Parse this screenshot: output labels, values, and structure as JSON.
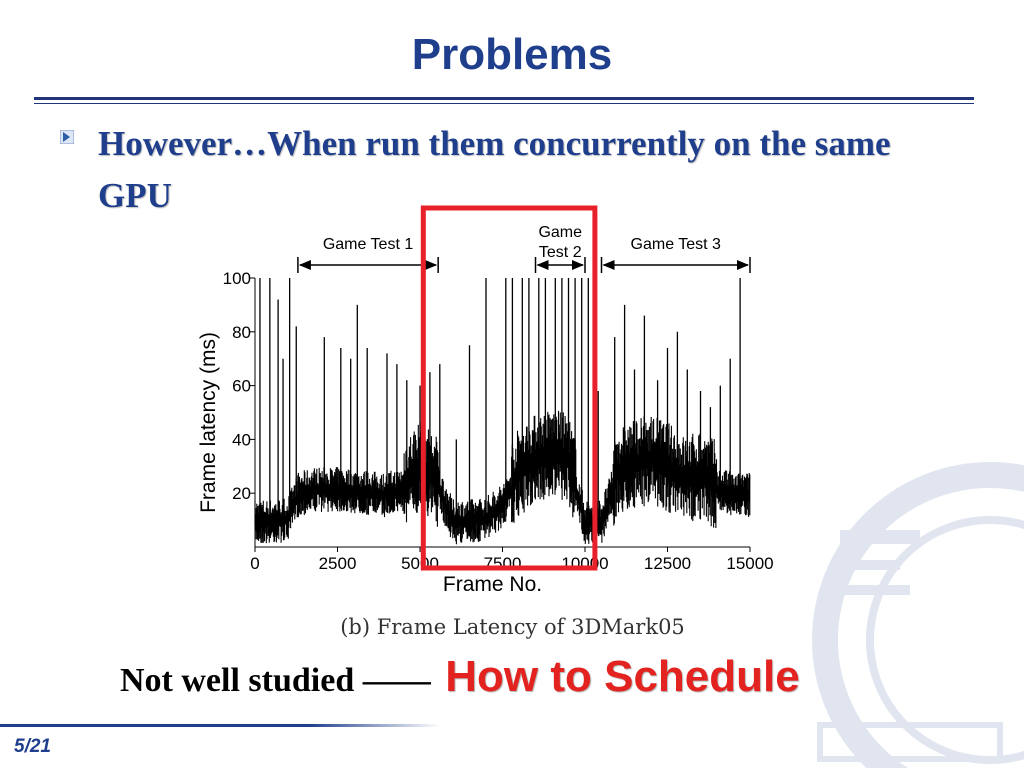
{
  "slide": {
    "title": "Problems",
    "bullet": "However…When run them concurrently on the same GPU",
    "bottom_text": "Not well studied ——",
    "bottom_emphasis": "How to Schedule",
    "page_number": "5/21"
  },
  "colors": {
    "title_blue": "#1f3e8c",
    "emphasis_red": "#e3231f",
    "highlight_box": "#e8202a"
  },
  "chart_data": {
    "type": "line",
    "caption": "(b) Frame Latency of 3DMark05",
    "xlabel": "Frame No.",
    "ylabel": "Frame latency (ms)",
    "xlim": [
      0,
      15000
    ],
    "ylim": [
      0,
      100
    ],
    "xticks": [
      0,
      2500,
      5000,
      7500,
      10000,
      12500,
      15000
    ],
    "yticks": [
      20,
      40,
      60,
      80,
      100
    ],
    "ytick_labels": [
      "20",
      "40",
      "60",
      "80",
      "100"
    ],
    "xtick_labels": [
      "0",
      "2500",
      "5000",
      "7500",
      "10000",
      "12500",
      "15000"
    ],
    "segments": [
      {
        "name": "Game Test 1",
        "label": "Game Test 1",
        "x_range": [
          1300,
          5550
        ]
      },
      {
        "name": "Game Test 2",
        "label": "Game Test 2",
        "x_range": [
          8500,
          10000
        ]
      },
      {
        "name": "Game Test 3",
        "label": "Game Test 3",
        "x_range": [
          10500,
          15000
        ]
      }
    ],
    "highlight_x_range": [
      5100,
      10300
    ],
    "series": [
      {
        "x": [
          0,
          500,
          1000,
          1300,
          1800,
          2500,
          3200,
          3900,
          4500,
          5000,
          5500,
          6000,
          6500,
          7000,
          7500,
          8000,
          8500,
          9000,
          9500,
          10000,
          10500,
          11000,
          11500,
          12000,
          12500,
          13000,
          13500,
          14000,
          14500,
          15000
        ],
        "y": [
          8,
          8,
          9,
          18,
          20,
          20,
          19,
          18,
          20,
          28,
          22,
          8,
          8,
          9,
          14,
          25,
          30,
          32,
          30,
          8,
          8,
          25,
          28,
          30,
          27,
          22,
          24,
          20,
          18,
          18
        ],
        "spike_x": [
          150,
          450,
          700,
          850,
          1050,
          1250,
          2100,
          2600,
          2900,
          3100,
          3400,
          4000,
          4300,
          4600,
          5000,
          5300,
          5600,
          6100,
          6500,
          7000,
          7600,
          7800,
          8100,
          8300,
          8600,
          8800,
          9100,
          9300,
          9500,
          9700,
          9900,
          10100,
          10400,
          10900,
          11200,
          11500,
          11800,
          12200,
          12500,
          12800,
          13100,
          13500,
          13800,
          14100,
          14400,
          14700
        ],
        "spike_y": [
          100,
          100,
          92,
          70,
          100,
          82,
          78,
          74,
          70,
          90,
          74,
          72,
          68,
          62,
          60,
          65,
          68,
          40,
          75,
          100,
          100,
          100,
          100,
          100,
          100,
          100,
          100,
          100,
          100,
          100,
          100,
          100,
          58,
          78,
          90,
          66,
          86,
          62,
          74,
          80,
          66,
          58,
          52,
          60,
          70,
          100
        ]
      }
    ]
  }
}
